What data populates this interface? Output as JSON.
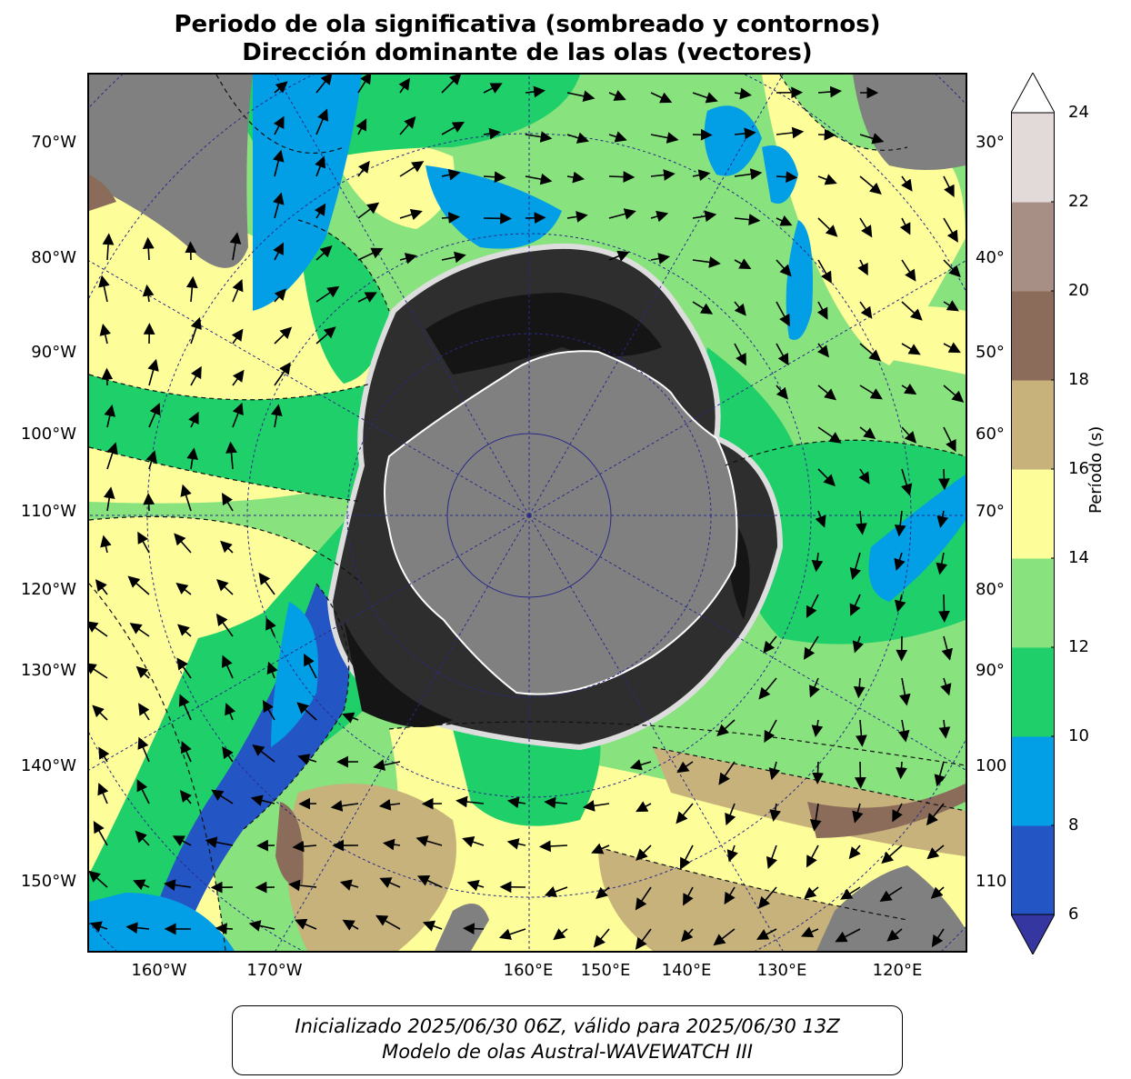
{
  "title_line1": "Periodo de ola significativa (sombreado y contornos)",
  "title_line2": "Dirección dominante de las olas (vectores)",
  "left_labels": [
    "70°W",
    "80°W",
    "90°W",
    "100°W",
    "110°W",
    "120°W",
    "130°W",
    "140°W",
    "150°W"
  ],
  "right_labels": [
    "30°",
    "40°",
    "50°",
    "60°",
    "70°",
    "80°",
    "90°",
    "100",
    "110"
  ],
  "bottom_labels": [
    "160°W",
    "170°W",
    "160°E",
    "150°E",
    "140°E",
    "130°E",
    "120°E"
  ],
  "colorbar": {
    "label": "Período (s)",
    "ticks": [
      "6",
      "8",
      "10",
      "12",
      "14",
      "16",
      "18",
      "20",
      "22",
      "24"
    ],
    "colors": [
      "#3636a0",
      "#2455c4",
      "#029ee6",
      "#1ecf6a",
      "#88e37e",
      "#fdfd99",
      "#c6b27a",
      "#8b6c5a",
      "#a88f86",
      "#e2d9d9",
      "#ffffff"
    ]
  },
  "footer_line1": "Inicializado 2025/06/30 06Z, válido para 2025/06/30 13Z",
  "footer_line2": "Modelo de olas Austral-WAVEWATCH III",
  "colors": {
    "land": "#808080",
    "ice_dark": "#151515",
    "ice_mid": "#2e2e2e",
    "grid": "#2a2a8a"
  }
}
